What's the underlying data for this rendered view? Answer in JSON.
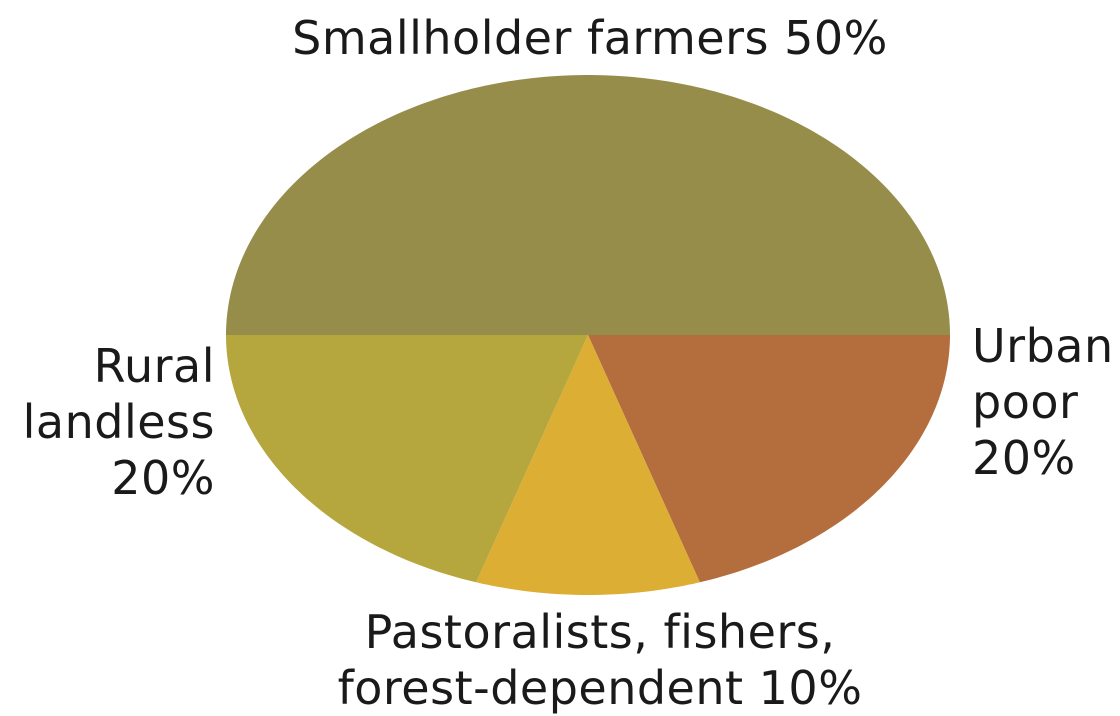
{
  "chart_data": {
    "type": "pie",
    "categories": [
      "Smallholder farmers",
      "Urban poor",
      "Pastoralists, fishers, forest-dependent",
      "Rural landless"
    ],
    "values": [
      50,
      20,
      10,
      20
    ],
    "unit": "%",
    "colors": [
      "#978D4B",
      "#B46D3C",
      "#DDAE34",
      "#B5A73D"
    ],
    "labels": {
      "smallholder": [
        "Smallholder farmers 50%"
      ],
      "urban": [
        "Urban",
        "poor",
        "20%"
      ],
      "pastoralists": [
        "Pastoralists, fishers,",
        "forest-dependent 10%"
      ],
      "rural": [
        "Rural",
        "landless",
        "20%"
      ]
    }
  }
}
